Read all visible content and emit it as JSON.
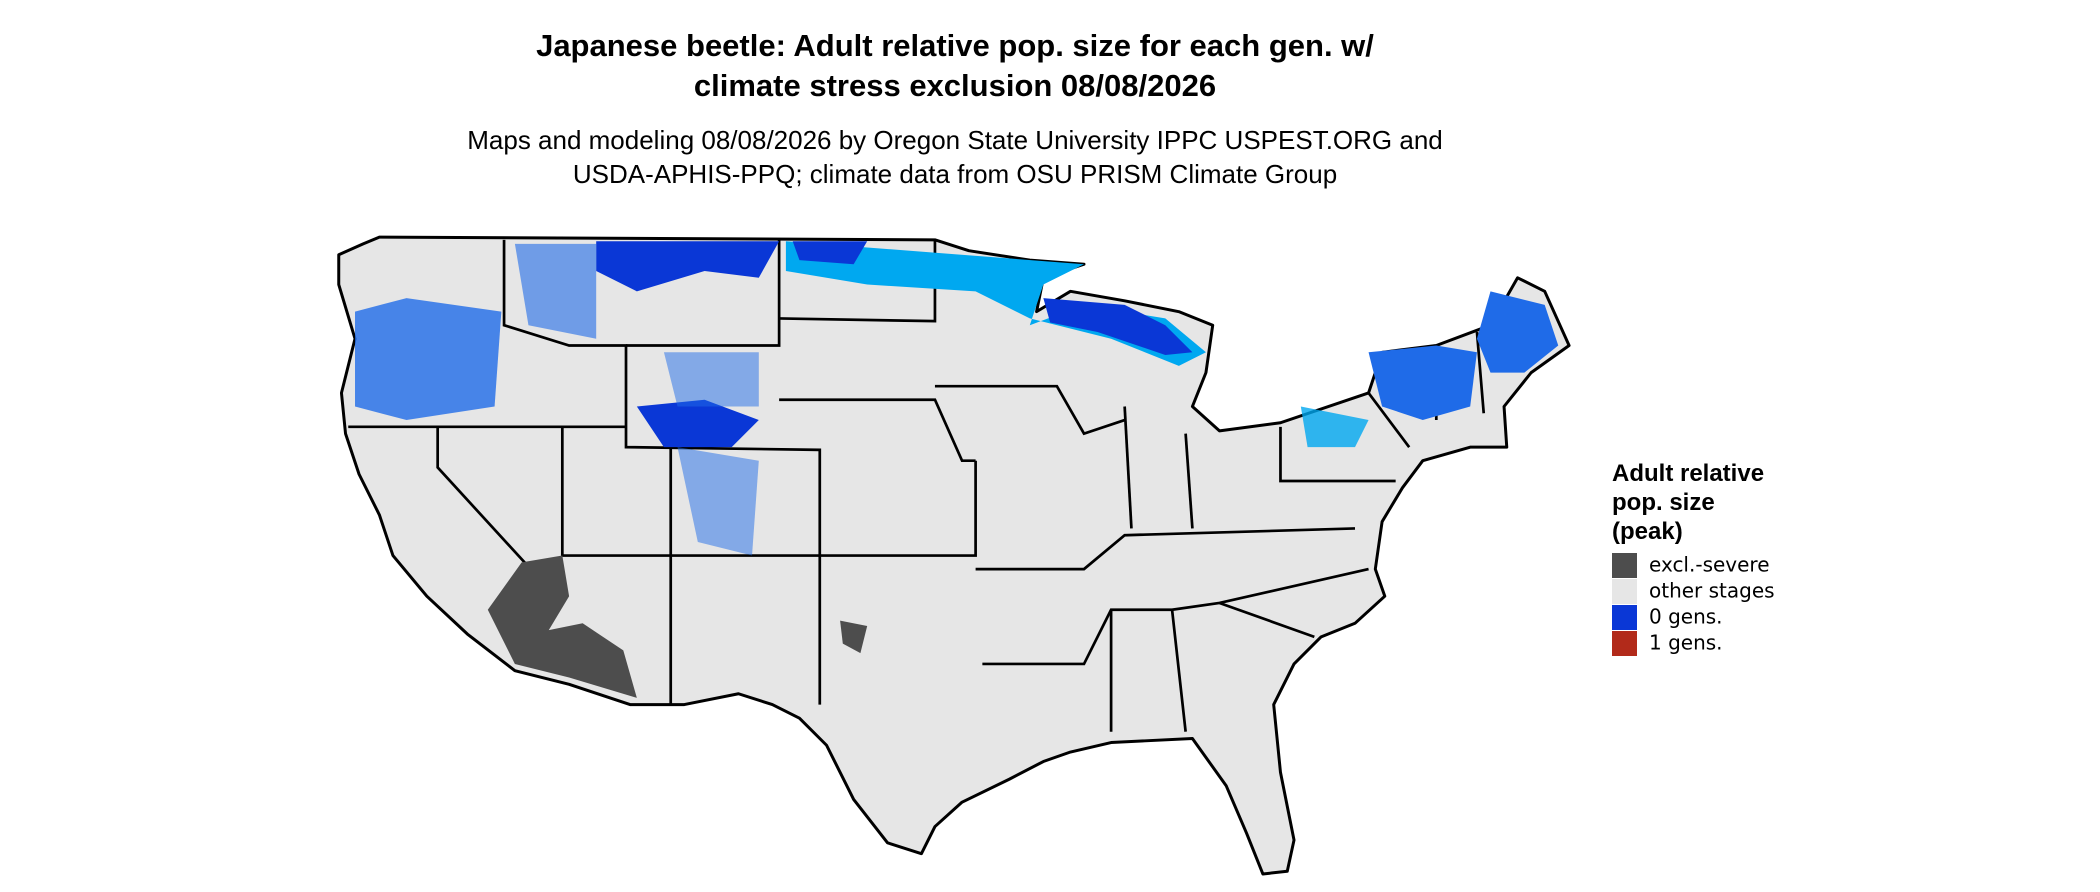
{
  "title_lines": [
    "Japanese beetle: Adult relative pop. size for each gen. w/",
    "climate stress exclusion 08/08/2026"
  ],
  "subtitle_lines": [
    "Maps and modeling 08/08/2026 by Oregon State University IPPC USPEST.ORG and",
    "USDA-APHIS-PPQ; climate data from OSU PRISM Climate Group"
  ],
  "legend": {
    "title_lines": [
      "Adult relative",
      "pop. size",
      "(peak)"
    ],
    "items": [
      {
        "label": "excl.-severe",
        "color": "#4d4d4d"
      },
      {
        "label": "other stages",
        "color": "#e6e6e6"
      },
      {
        "label": "0 gens.",
        "color": "#0a37d6"
      },
      {
        "label": "1 gens.",
        "color": "#b22a1a"
      }
    ]
  }
}
